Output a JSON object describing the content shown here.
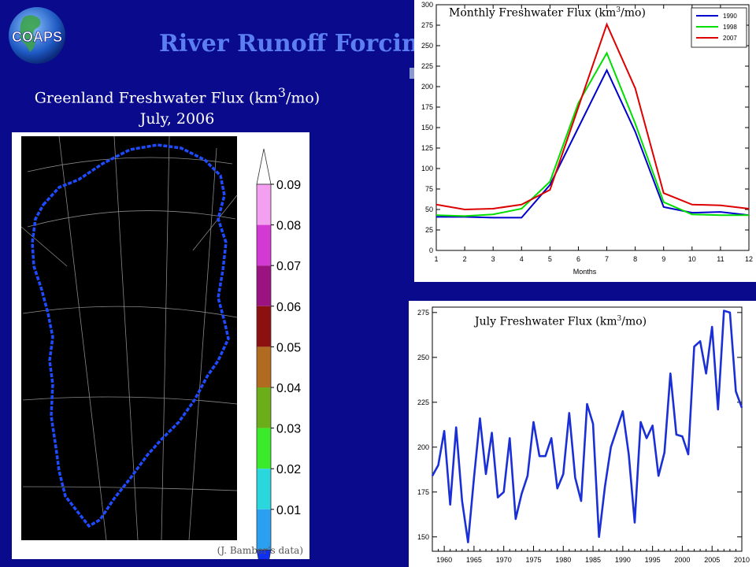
{
  "slide": {
    "title": "River Runoff Forcin",
    "logo_text": "COAPS"
  },
  "colors": {
    "background": "#0a0a8c",
    "title": "#5b7ff0",
    "series_1990": "#0000cc",
    "series_1998": "#00dd00",
    "series_2007": "#dd0000",
    "july_line": "#1a2fd6"
  },
  "map": {
    "title_line1": "Greenland Freshwater Flux (km",
    "title_sup": "3",
    "title_line1_end": "/mo)",
    "title_line2": "July, 2006",
    "credit": "(J. Bamber’s data)",
    "colorbar": {
      "labels": [
        "0.09",
        "0.08",
        "0.07",
        "0.06",
        "0.05",
        "0.04",
        "0.03",
        "0.02",
        "0.01"
      ],
      "colors": [
        "#f3a0f0",
        "#d23ad3",
        "#9b1380",
        "#8c1010",
        "#b06b20",
        "#6cae1a",
        "#3bea2a",
        "#2ad7dd",
        "#2ba0f0"
      ],
      "over_color": "#ffffff",
      "under_color": "#1030f0"
    }
  },
  "chart_data": [
    {
      "type": "line",
      "title": "Monthly Freshwater Flux (km",
      "title_sup": "3",
      "title_end": "/mo)",
      "xlabel": "Months",
      "ylabel": "",
      "x": [
        1,
        2,
        3,
        4,
        5,
        6,
        7,
        8,
        9,
        10,
        11,
        12
      ],
      "xlim": [
        1,
        12
      ],
      "ylim": [
        0,
        300
      ],
      "yticks": [
        0,
        25,
        50,
        75,
        100,
        125,
        150,
        175,
        200,
        225,
        250,
        275,
        300
      ],
      "legend_position": "top-right",
      "grid": false,
      "series": [
        {
          "name": "1990",
          "color": "#0000cc",
          "values": [
            41,
            41,
            40,
            40,
            80,
            150,
            220,
            145,
            53,
            46,
            47,
            43
          ]
        },
        {
          "name": "1998",
          "color": "#00dd00",
          "values": [
            43,
            42,
            44,
            51,
            84,
            180,
            241,
            155,
            59,
            44,
            43,
            43
          ]
        },
        {
          "name": "2007",
          "color": "#dd0000",
          "values": [
            56,
            50,
            51,
            56,
            74,
            175,
            276,
            198,
            70,
            56,
            55,
            51
          ]
        }
      ]
    },
    {
      "type": "line",
      "title": "July Freshwater Flux (km",
      "title_sup": "3",
      "title_end": "/mo)",
      "xlabel": "",
      "ylabel": "",
      "xlim": [
        1958,
        2010
      ],
      "ylim": [
        142,
        278
      ],
      "xticks": [
        1960,
        1965,
        1970,
        1975,
        1980,
        1985,
        1990,
        1995,
        2000,
        2005,
        2010
      ],
      "yticks": [
        150,
        175,
        200,
        225,
        250,
        275
      ],
      "grid": false,
      "series": [
        {
          "color": "#1a2fd6",
          "x": [
            1958,
            1959,
            1960,
            1961,
            1962,
            1963,
            1964,
            1965,
            1966,
            1967,
            1968,
            1969,
            1970,
            1971,
            1972,
            1973,
            1974,
            1975,
            1976,
            1977,
            1978,
            1979,
            1980,
            1981,
            1982,
            1983,
            1984,
            1985,
            1986,
            1987,
            1988,
            1989,
            1990,
            1991,
            1992,
            1993,
            1994,
            1995,
            1996,
            1997,
            1998,
            1999,
            2000,
            2001,
            2002,
            2003,
            2004,
            2005,
            2006,
            2007,
            2008,
            2009,
            2010
          ],
          "values": [
            184,
            190,
            209,
            168,
            211,
            170,
            147,
            183,
            216,
            185,
            208,
            172,
            175,
            205,
            160,
            174,
            184,
            214,
            195,
            195,
            205,
            177,
            185,
            219,
            183,
            170,
            224,
            213,
            150,
            178,
            200,
            210,
            220,
            196,
            158,
            214,
            205,
            212,
            184,
            197,
            241,
            207,
            206,
            196,
            256,
            259,
            241,
            267,
            221,
            276,
            275,
            231,
            222
          ]
        }
      ]
    }
  ]
}
